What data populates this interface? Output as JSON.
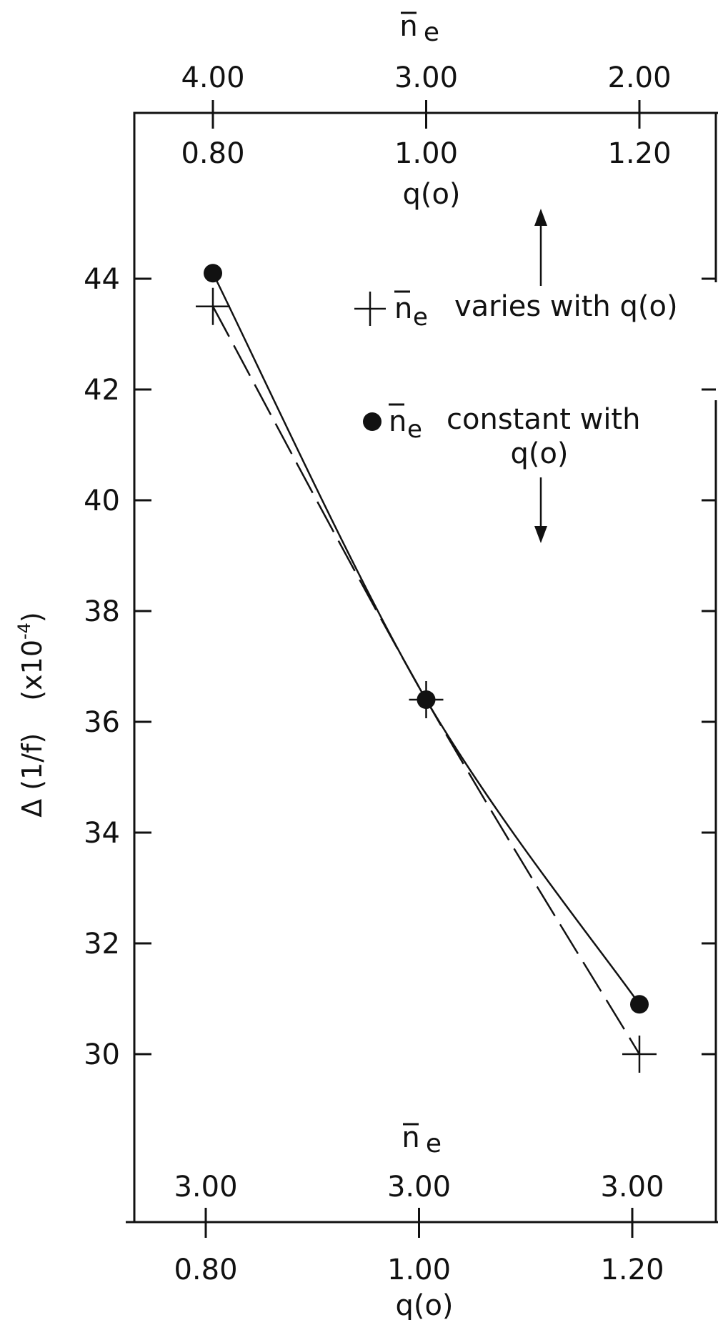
{
  "colors": {
    "ink": "#111111",
    "background": "#ffffff"
  },
  "chart_data": {
    "type": "line",
    "xlabel": "q(o)",
    "ylabel_parts": [
      "Δ (1/f)",
      "(x10",
      "-4",
      ")"
    ],
    "x": [
      0.8,
      1.0,
      1.2
    ],
    "xlim": [
      0.8,
      1.2
    ],
    "ylim": [
      30,
      44
    ],
    "yticks": [
      30,
      32,
      34,
      36,
      38,
      40,
      42,
      44
    ],
    "grid": false,
    "top_axis": {
      "label_symbol": "n",
      "label_sub": "e",
      "ne_labels": [
        "4.00",
        "3.00",
        "2.00"
      ],
      "q_labels": [
        "0.80",
        "1.00",
        "1.20"
      ],
      "q_label": "q(o)"
    },
    "bottom_axis": {
      "label_symbol": "n",
      "label_sub": "e",
      "ne_labels": [
        "3.00",
        "3.00",
        "3.00"
      ],
      "q_labels": [
        "0.80",
        "1.00",
        "1.20"
      ],
      "q_label": "q(o)"
    },
    "series": [
      {
        "marker": "plus",
        "line": "dashed",
        "values": [
          43.5,
          36.4,
          30.0
        ]
      },
      {
        "marker": "dot",
        "line": "solid",
        "values": [
          44.1,
          36.4,
          30.9
        ]
      }
    ],
    "legend": [
      {
        "marker": "plus",
        "symbol": "n",
        "sub": "e",
        "text": "varies with q(o)"
      },
      {
        "marker": "dot",
        "symbol": "n",
        "sub": "e",
        "text_line1": "constant with",
        "text_line2": "q(o)"
      }
    ]
  }
}
